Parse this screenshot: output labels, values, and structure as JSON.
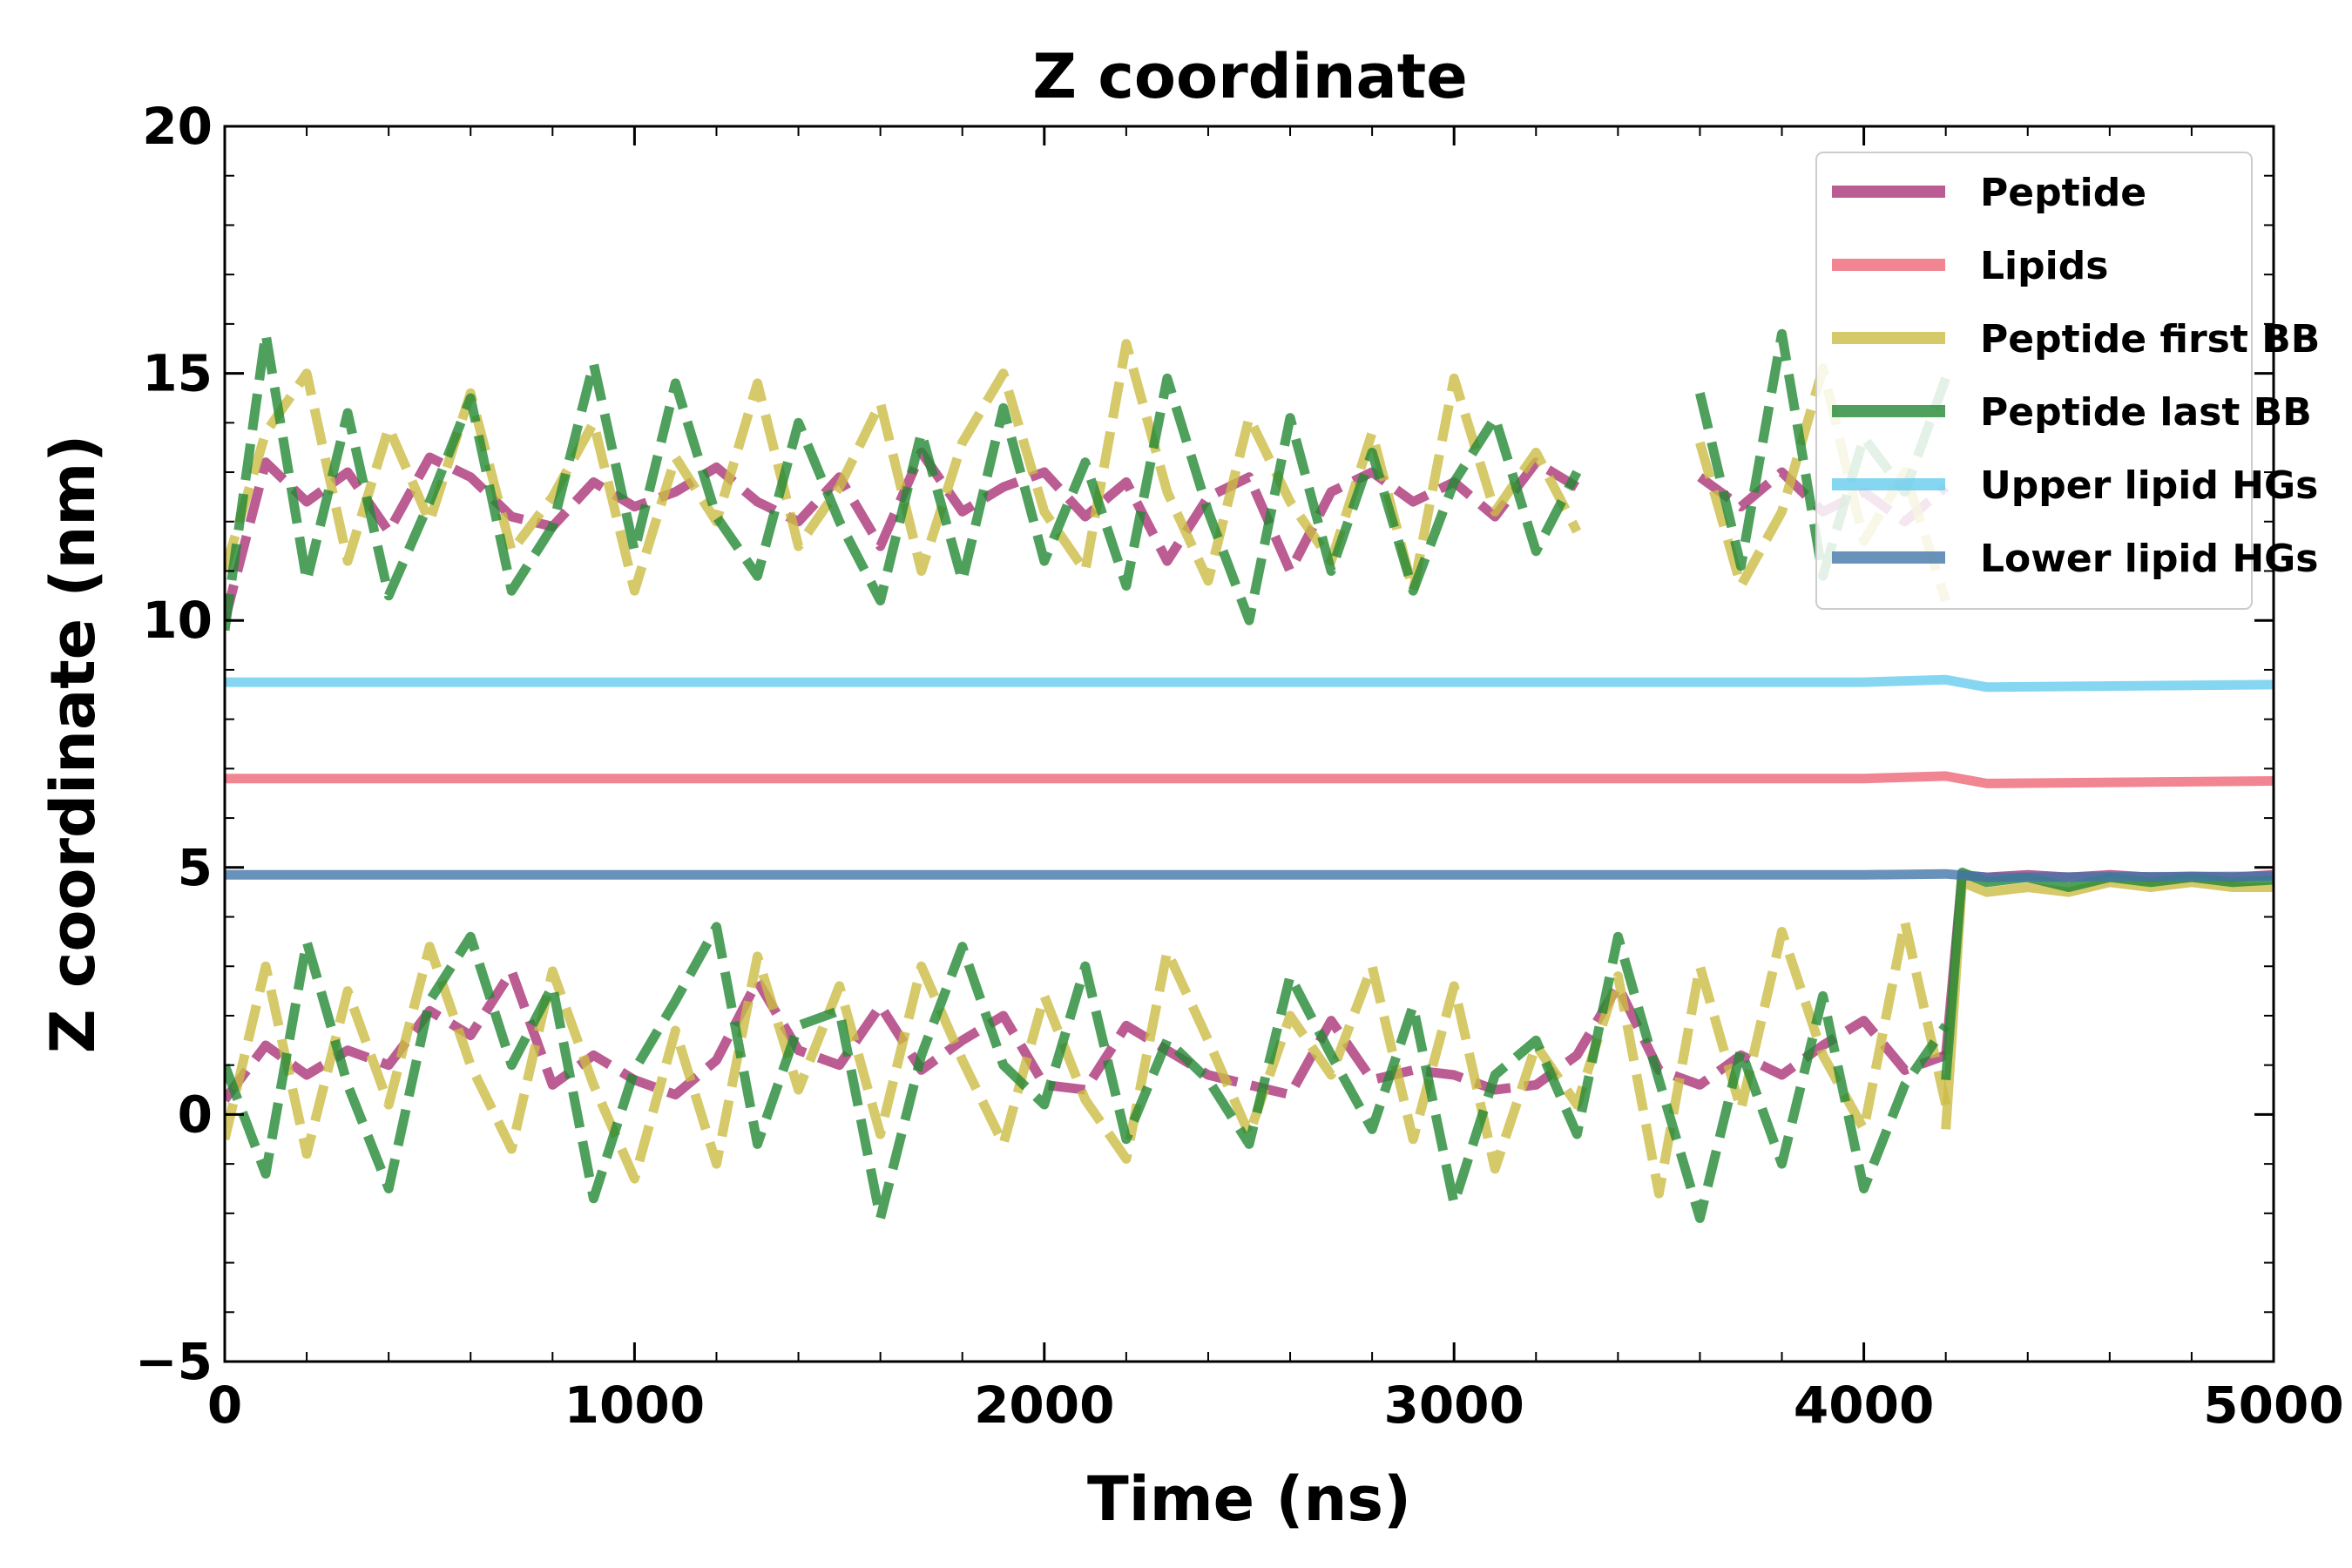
{
  "chart_data": {
    "type": "line",
    "title": "Z coordinate",
    "xlabel": "Time (ns)",
    "ylabel": "Z coordinate (nm)",
    "xlim": [
      0,
      5000
    ],
    "ylim": [
      -5,
      20
    ],
    "x_ticks": [
      0,
      1000,
      2000,
      3000,
      4000,
      5000
    ],
    "x_tick_labels": [
      "0",
      "1000",
      "2000",
      "3000",
      "4000",
      "5000"
    ],
    "y_ticks": [
      -5,
      0,
      5,
      10,
      15,
      20
    ],
    "y_tick_labels": [
      "−5",
      "0",
      "5",
      "10",
      "15",
      "20"
    ],
    "x_minor_step": 200,
    "y_minor_step": 1,
    "grid": false,
    "legend_position": "top-right",
    "legend": [
      "Peptide",
      "Lipids",
      "Peptide first BB",
      "Peptide last BB",
      "Upper lipid HGs",
      "Lower lipid HGs"
    ],
    "series": [
      {
        "name": "Peptide",
        "color": "#aa3377",
        "style": "dashed",
        "x": [
          0,
          100,
          200,
          300,
          400,
          500,
          600,
          700,
          800,
          900,
          1000,
          1100,
          1200,
          1300,
          1400,
          1500,
          1600,
          1700,
          1800,
          1900,
          2000,
          2100,
          2200,
          2300,
          2400,
          2500,
          2600,
          2700,
          2800,
          2900,
          3000,
          3100,
          3200,
          3300,
          3400,
          3500,
          3600,
          3700,
          3800,
          3900,
          4000,
          4100,
          4200
        ],
        "upper": [
          10.0,
          13.2,
          12.4,
          13.0,
          11.8,
          13.3,
          12.9,
          12.1,
          11.9,
          12.8,
          12.3,
          12.6,
          13.1,
          12.4,
          12.0,
          12.9,
          11.5,
          13.4,
          12.2,
          12.7,
          13.0,
          12.1,
          12.8,
          11.2,
          12.5,
          12.9,
          11.0,
          12.6,
          13.0,
          12.4,
          12.8,
          12.1,
          13.2,
          12.7,
          null,
          null,
          12.9,
          12.3,
          13.0,
          12.2,
          12.6,
          12.0,
          12.7
        ],
        "lower": [
          0.3,
          1.4,
          0.8,
          1.3,
          1.0,
          2.1,
          1.6,
          2.9,
          0.6,
          1.2,
          0.7,
          0.4,
          1.1,
          2.7,
          1.3,
          1.0,
          2.2,
          0.9,
          1.5,
          2.0,
          0.6,
          0.5,
          1.8,
          1.3,
          0.8,
          0.6,
          0.4,
          1.9,
          0.7,
          0.9,
          0.8,
          0.5,
          0.6,
          1.2,
          2.6,
          0.9,
          0.6,
          1.2,
          0.8,
          1.4,
          1.9,
          0.9,
          1.2
        ],
        "after_x": [
          4200,
          4240,
          4300,
          4400,
          4500,
          4600,
          4700,
          4800,
          4900,
          5000
        ],
        "after_y": [
          1.2,
          4.85,
          4.8,
          4.85,
          4.8,
          4.85,
          4.8,
          4.82,
          4.8,
          4.85
        ]
      },
      {
        "name": "Lipids",
        "color": "#ee6677",
        "style": "solid",
        "x": [
          0,
          1000,
          2000,
          3000,
          4000,
          4200,
          4300,
          5000
        ],
        "y": [
          6.8,
          6.8,
          6.8,
          6.8,
          6.8,
          6.85,
          6.7,
          6.75
        ]
      },
      {
        "name": "Peptide first BB",
        "color": "#ccbb44",
        "style": "dashed",
        "x": [
          0,
          100,
          200,
          300,
          400,
          500,
          600,
          700,
          800,
          900,
          1000,
          1100,
          1200,
          1300,
          1400,
          1500,
          1600,
          1700,
          1800,
          1900,
          2000,
          2100,
          2200,
          2300,
          2400,
          2500,
          2600,
          2700,
          2800,
          2900,
          3000,
          3100,
          3200,
          3300,
          3400,
          3500,
          3600,
          3700,
          3800,
          3900,
          4000,
          4100,
          4200
        ],
        "upper": [
          11.0,
          13.8,
          15.0,
          11.2,
          13.9,
          12.0,
          14.6,
          11.4,
          12.5,
          14.0,
          10.6,
          13.3,
          12.0,
          14.8,
          11.5,
          12.7,
          14.4,
          11.0,
          13.6,
          15.0,
          12.2,
          11.0,
          15.6,
          12.6,
          10.8,
          14.1,
          12.4,
          11.2,
          13.8,
          10.6,
          14.9,
          12.2,
          13.4,
          11.8,
          null,
          null,
          13.6,
          10.7,
          12.2,
          15.1,
          11.6,
          13.0,
          10.4
        ],
        "lower": [
          -0.5,
          3.0,
          -0.8,
          2.5,
          0.2,
          3.4,
          1.0,
          -0.7,
          2.9,
          0.6,
          -1.3,
          1.7,
          -1.0,
          3.2,
          0.5,
          2.6,
          -0.4,
          3.0,
          1.1,
          -0.6,
          2.4,
          0.3,
          -0.9,
          3.3,
          1.5,
          -0.4,
          2.0,
          0.8,
          3.0,
          -0.5,
          2.6,
          -1.1,
          1.4,
          0.2,
          2.8,
          -1.6,
          3.0,
          0.1,
          3.7,
          1.2,
          -0.3,
          3.9,
          0.2
        ],
        "after_x": [
          4200,
          4240,
          4300,
          4400,
          4500,
          4600,
          4700,
          4800,
          4900,
          5000
        ],
        "after_y": [
          -0.3,
          4.7,
          4.5,
          4.6,
          4.5,
          4.7,
          4.6,
          4.7,
          4.6,
          4.6
        ]
      },
      {
        "name": "Peptide last BB",
        "color": "#228833",
        "style": "dashed",
        "x": [
          0,
          100,
          200,
          300,
          400,
          500,
          600,
          700,
          800,
          900,
          1000,
          1100,
          1200,
          1300,
          1400,
          1500,
          1600,
          1700,
          1800,
          1900,
          2000,
          2100,
          2200,
          2300,
          2400,
          2500,
          2600,
          2700,
          2800,
          2900,
          3000,
          3100,
          3200,
          3300,
          3400,
          3500,
          3600,
          3700,
          3800,
          3900,
          4000,
          4100,
          4200
        ],
        "upper": [
          9.8,
          15.8,
          10.8,
          14.2,
          10.5,
          12.4,
          14.5,
          10.6,
          11.9,
          15.2,
          11.4,
          14.8,
          12.1,
          10.9,
          14.0,
          12.0,
          10.4,
          13.8,
          10.8,
          14.3,
          11.2,
          13.2,
          10.7,
          14.9,
          12.2,
          10.0,
          14.1,
          11.0,
          13.4,
          10.6,
          12.8,
          14.1,
          11.4,
          13.0,
          null,
          null,
          14.6,
          11.1,
          15.8,
          10.9,
          13.7,
          12.6,
          14.9
        ],
        "lower": [
          1.0,
          -1.2,
          3.5,
          0.6,
          -1.5,
          2.3,
          3.6,
          1.0,
          2.6,
          -1.7,
          0.9,
          2.3,
          3.8,
          -0.6,
          1.8,
          2.1,
          -2.1,
          1.2,
          3.4,
          1.0,
          0.2,
          3.0,
          -0.5,
          1.5,
          0.7,
          -0.6,
          2.8,
          1.2,
          -0.3,
          2.2,
          -1.8,
          0.8,
          1.5,
          -0.4,
          3.6,
          0.7,
          -2.1,
          1.3,
          -1.0,
          2.4,
          -1.5,
          0.6,
          1.8
        ],
        "after_x": [
          4200,
          4240,
          4300,
          4400,
          4500,
          4600,
          4700,
          4800,
          4900,
          5000
        ],
        "after_y": [
          0.7,
          4.9,
          4.7,
          4.8,
          4.6,
          4.8,
          4.7,
          4.8,
          4.7,
          4.75
        ]
      },
      {
        "name": "Upper lipid HGs",
        "color": "#66ccee",
        "style": "solid",
        "x": [
          0,
          1000,
          2000,
          3000,
          4000,
          4200,
          4300,
          5000
        ],
        "y": [
          8.75,
          8.75,
          8.75,
          8.75,
          8.75,
          8.8,
          8.65,
          8.7
        ]
      },
      {
        "name": "Lower lipid HGs",
        "color": "#4477aa",
        "style": "solid",
        "x": [
          0,
          1000,
          2000,
          3000,
          4000,
          4200,
          4300,
          5000
        ],
        "y": [
          4.85,
          4.85,
          4.85,
          4.85,
          4.85,
          4.87,
          4.8,
          4.82
        ]
      }
    ]
  }
}
